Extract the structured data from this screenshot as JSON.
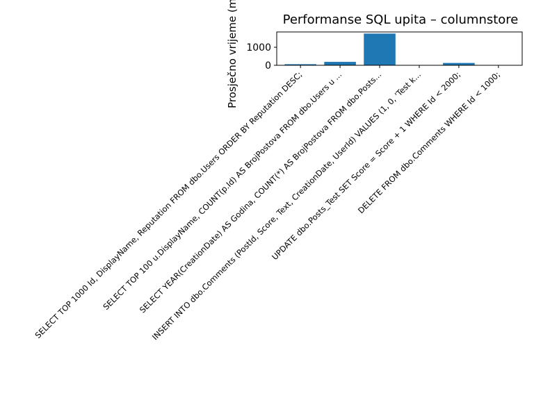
{
  "chart_data": {
    "type": "bar",
    "title": "Performanse SQL upita – columnstore",
    "xlabel": "",
    "ylabel": "Prosječno vrijeme (ms)",
    "categories": [
      "SELECT TOP 1000 Id, DisplayName, Reputation FROM dbo.Users ORDER BY Reputation DESC;",
      "SELECT TOP 100 u.DisplayName, COUNT(p.Id) AS BrojPostova FROM dbo.Users u ...",
      "SELECT YEAR(CreationDate) AS Godina, COUNT(*) AS BrojPostova FROM dbo.Posts...",
      "INSERT INTO dbo.Comments (PostId, Score, Text, CreationDate, UserId) VALUES (1, 0, 'Test k...",
      "UPDATE dbo.Posts_Test SET Score = Score + 1 WHERE Id < 2000;",
      "DELETE FROM dbo.Comments WHERE Id < 1000;"
    ],
    "values": [
      60,
      190,
      1760,
      5,
      130,
      8
    ],
    "ylim": [
      0,
      1850
    ],
    "yticks": [
      0,
      1000
    ],
    "grid": false,
    "bar_color": "#1f77b4"
  }
}
